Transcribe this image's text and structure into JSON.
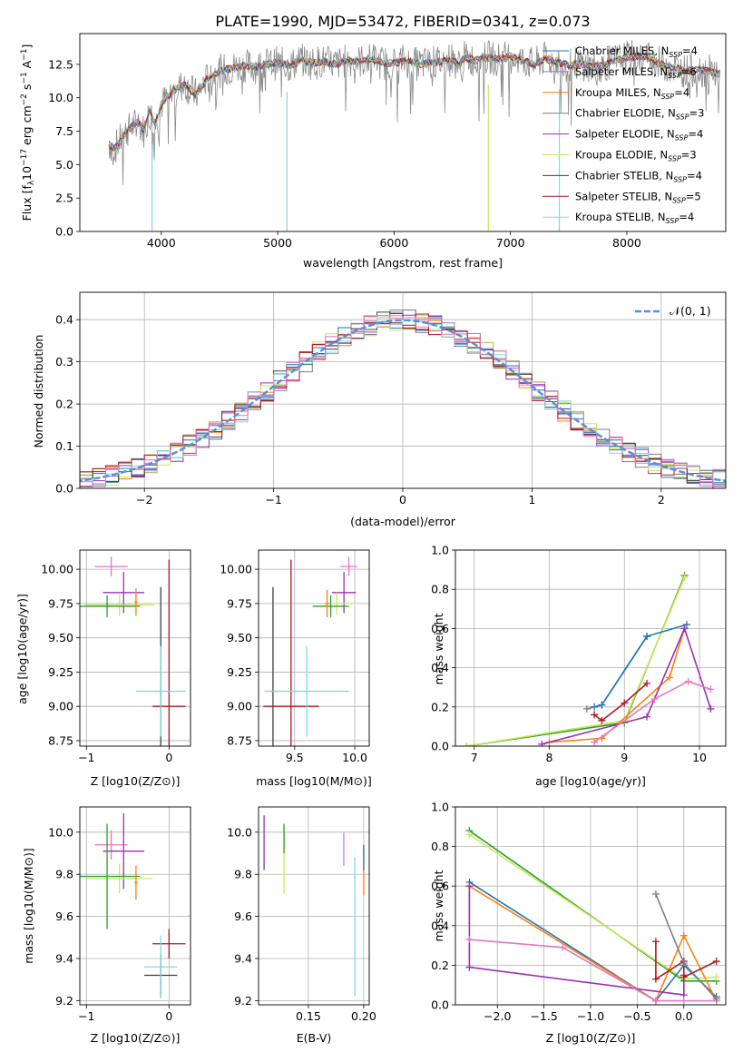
{
  "figure_title": "PLATE=1990, MJD=53472, FIBERID=0341, z=0.073",
  "colors": {
    "chabrier_miles": "#1f77b4",
    "salpeter_miles": "#8c7bd1",
    "kroupa_miles": "#ff7f0e",
    "chabrier_elodie": "#7f7f7f",
    "salpeter_elodie": "#9b30b0",
    "kroupa_elodie": "#c8e85a",
    "chabrier_stelib": "#404040",
    "salpeter_stelib": "#b0161e",
    "kroupa_stelib": "#7fd8e0",
    "pink": "#e377c2",
    "green": "#2ca02c",
    "normal_curve": "#5b8fd6"
  },
  "legend_spectrum": [
    {
      "model": "Chabrier MILES",
      "nssp": "=4"
    },
    {
      "model": "Salpeter MILES",
      "nssp": "=6"
    },
    {
      "model": "Kroupa MILES",
      "nssp": "=4"
    },
    {
      "model": "Chabrier ELODIE",
      "nssp": "=3"
    },
    {
      "model": "Salpeter ELODIE",
      "nssp": "=4"
    },
    {
      "model": "Kroupa ELODIE",
      "nssp": "=3"
    },
    {
      "model": "Chabrier STELIB",
      "nssp": "=4"
    },
    {
      "model": "Salpeter STELIB",
      "nssp": "=5"
    },
    {
      "model": "Kroupa STELIB",
      "nssp": "=4"
    }
  ],
  "chart_data": [
    {
      "id": "spectrum",
      "type": "line",
      "xlabel": "wavelength [Angstrom, rest frame]",
      "ylabel": "Flux [f_λ 10^-17 erg cm^-2 s^-1 A^-1]",
      "ylabel_parts": {
        "a": "Flux [f",
        "b": "λ",
        "c": "10",
        "d": "−17",
        "e": " erg cm",
        "f": "−2",
        "g": " s",
        "h": "−1",
        "i": " A",
        "j": "−1",
        "k": "]"
      },
      "xlim": [
        3300,
        8850
      ],
      "ylim": [
        0,
        14.8
      ],
      "xticks": [
        4000,
        5000,
        6000,
        7000,
        8000
      ],
      "yticks": [
        0.0,
        2.5,
        5.0,
        7.5,
        10.0,
        12.5
      ],
      "series_shape": {
        "x": [
          3550,
          3600,
          3700,
          3800,
          3850,
          3900,
          3950,
          4000,
          4100,
          4200,
          4300,
          4400,
          4500,
          4600,
          4700,
          4800,
          4900,
          5000,
          5100,
          5200,
          5300,
          5400,
          5500,
          5600,
          5700,
          5800,
          5900,
          6000,
          6100,
          6200,
          6300,
          6400,
          6500,
          6560,
          6600,
          6700,
          6800,
          6900,
          7000,
          7100,
          7200,
          7300,
          7400,
          7500,
          7600,
          7700,
          7800,
          7900,
          8000,
          8100,
          8200,
          8300,
          8400,
          8500,
          8600,
          8700,
          8800
        ],
        "y": [
          6.5,
          6.2,
          7.5,
          8.2,
          7.5,
          9.0,
          8.0,
          9.5,
          10.5,
          11.0,
          10.2,
          11.5,
          12.0,
          12.2,
          12.4,
          12.3,
          12.5,
          12.6,
          12.4,
          12.8,
          12.6,
          12.7,
          12.5,
          12.8,
          12.7,
          12.9,
          12.6,
          12.6,
          12.8,
          12.5,
          12.6,
          12.7,
          12.9,
          12.4,
          13.0,
          12.8,
          13.0,
          12.9,
          13.1,
          12.8,
          12.5,
          12.9,
          12.7,
          12.4,
          12.6,
          12.3,
          12.4,
          12.8,
          13.0,
          13.1,
          13.0,
          12.5,
          12.3,
          12.0,
          12.1,
          12.0,
          11.8
        ]
      },
      "dips": [
        {
          "x": 3920,
          "y": 0
        },
        {
          "x": 5080,
          "y": 0
        },
        {
          "x": 6810,
          "y": 0
        },
        {
          "x": 7420,
          "y": 0
        }
      ]
    },
    {
      "id": "residuals",
      "type": "line",
      "xlabel": "(data-model)/error",
      "ylabel": "Normed distribution",
      "xlim": [
        -2.5,
        2.5
      ],
      "ylim": [
        0,
        0.465
      ],
      "xticks": [
        -2,
        -1,
        0,
        1,
        2
      ],
      "yticks": [
        0.0,
        0.1,
        0.2,
        0.3,
        0.4
      ],
      "legend": "𝒩(0, 1)",
      "bin_width": 0.1,
      "curve": "normal pdf, mean 0, sigma 1"
    },
    {
      "id": "age_vs_Z",
      "type": "scatter",
      "xlabel": "Z [log10(Z/Z⊙)]",
      "ylabel": "age [log10(age/yr)]",
      "xlim": [
        -1.08,
        0.26
      ],
      "ylim": [
        8.71,
        10.14
      ],
      "xticks": [
        -1,
        0
      ],
      "yticks": [
        8.75,
        9.0,
        9.25,
        9.5,
        9.75,
        10.0
      ],
      "points": [
        {
          "x": -0.7,
          "y": 10.02,
          "xerr": 0.2,
          "yerr": 0.07,
          "color": "pink"
        },
        {
          "x": -0.55,
          "y": 9.83,
          "xerr": 0.25,
          "yerr": 0.15,
          "color": "salpeter_elodie"
        },
        {
          "x": -0.6,
          "y": 9.74,
          "xerr": 0.42,
          "yerr": 0.08,
          "color": "kroupa_elodie"
        },
        {
          "x": -0.75,
          "y": 9.73,
          "xerr": 0.4,
          "yerr": 0.08,
          "color": "green"
        },
        {
          "x": -0.4,
          "y": 9.76,
          "xerr": 0.02,
          "yerr": 0.1,
          "color": "kroupa_miles"
        },
        {
          "x": -0.1,
          "y": 9.11,
          "xerr": 0.02,
          "yerr": 0.76,
          "color": "chabrier_stelib"
        },
        {
          "x": 0.0,
          "y": 9.0,
          "xerr": 0.2,
          "yerr": 1.07,
          "color": "salpeter_stelib"
        },
        {
          "x": -0.1,
          "y": 9.11,
          "xerr": 0.3,
          "yerr": 0.33,
          "color": "kroupa_stelib"
        }
      ]
    },
    {
      "id": "age_vs_mass",
      "type": "scatter",
      "xlabel": "mass [log10(M/M⊙)]",
      "ylabel": "",
      "xlim": [
        9.2,
        10.12
      ],
      "ylim": [
        8.71,
        10.14
      ],
      "xticks": [
        9.5,
        10.0
      ],
      "yticks": [
        8.75,
        9.0,
        9.25,
        9.5,
        9.75,
        10.0
      ],
      "points": [
        {
          "x": 9.95,
          "y": 10.02,
          "xerr": 0.07,
          "yerr": 0.07,
          "color": "pink"
        },
        {
          "x": 9.91,
          "y": 9.83,
          "xerr": 0.1,
          "yerr": 0.15,
          "color": "salpeter_elodie"
        },
        {
          "x": 9.85,
          "y": 9.75,
          "xerr": 0.13,
          "yerr": 0.08,
          "color": "kroupa_elodie"
        },
        {
          "x": 9.8,
          "y": 9.73,
          "xerr": 0.15,
          "yerr": 0.08,
          "color": "green"
        },
        {
          "x": 9.77,
          "y": 9.75,
          "xerr": 0.02,
          "yerr": 0.1,
          "color": "kroupa_miles"
        },
        {
          "x": 9.32,
          "y": 9.11,
          "xerr": 0.02,
          "yerr": 0.76,
          "color": "chabrier_stelib"
        },
        {
          "x": 9.47,
          "y": 9.0,
          "xerr": 0.23,
          "yerr": 1.07,
          "color": "salpeter_stelib"
        },
        {
          "x": 9.6,
          "y": 9.11,
          "xerr": 0.35,
          "yerr": 0.33,
          "color": "kroupa_stelib"
        }
      ]
    },
    {
      "id": "massweight_vs_age",
      "type": "line",
      "xlabel": "age [log10(age/yr)]",
      "ylabel": "mass weight",
      "xlim": [
        6.75,
        10.35
      ],
      "ylim": [
        0,
        1
      ],
      "xticks": [
        7,
        8,
        9,
        10
      ],
      "yticks": [
        0.0,
        0.2,
        0.4,
        0.6,
        0.8,
        1.0
      ],
      "series": [
        {
          "color": "green",
          "points": [
            [
              6.9,
              0.0
            ],
            [
              9.0,
              0.12
            ],
            [
              9.8,
              0.87
            ]
          ]
        },
        {
          "color": "kroupa_elodie",
          "points": [
            [
              6.9,
              0.0
            ],
            [
              9.0,
              0.13
            ],
            [
              9.8,
              0.86
            ]
          ]
        },
        {
          "color": "chabrier_elodie",
          "points": [
            [
              8.5,
              0.19
            ],
            [
              8.7,
              0.21
            ],
            [
              9.3,
              0.56
            ]
          ]
        },
        {
          "color": "chabrier_miles",
          "points": [
            [
              8.6,
              0.2
            ],
            [
              8.7,
              0.21
            ],
            [
              9.3,
              0.56
            ],
            [
              9.83,
              0.62
            ]
          ]
        },
        {
          "color": "kroupa_miles",
          "points": [
            [
              8.0,
              0.02
            ],
            [
              8.7,
              0.04
            ],
            [
              9.6,
              0.35
            ],
            [
              9.8,
              0.6
            ]
          ]
        },
        {
          "color": "salpeter_stelib",
          "points": [
            [
              8.6,
              0.16
            ],
            [
              8.7,
              0.13
            ],
            [
              9.0,
              0.22
            ],
            [
              9.3,
              0.32
            ]
          ]
        },
        {
          "color": "salpeter_elodie",
          "points": [
            [
              7.9,
              0.01
            ],
            [
              9.3,
              0.15
            ],
            [
              9.8,
              0.6
            ],
            [
              10.15,
              0.19
            ]
          ]
        },
        {
          "color": "pink",
          "points": [
            [
              8.6,
              0.02
            ],
            [
              9.4,
              0.24
            ],
            [
              9.85,
              0.33
            ],
            [
              10.15,
              0.29
            ]
          ]
        }
      ]
    },
    {
      "id": "mass_vs_Z",
      "type": "scatter",
      "xlabel": "Z [log10(Z/Z⊙)]",
      "ylabel": "mass [log10(M/M⊙)]",
      "xlim": [
        -1.08,
        0.26
      ],
      "ylim": [
        9.18,
        10.12
      ],
      "xticks": [
        -1,
        0
      ],
      "yticks": [
        9.2,
        9.4,
        9.6,
        9.8,
        10.0
      ],
      "points": [
        {
          "x": -0.7,
          "y": 9.94,
          "xerr": 0.2,
          "yerr": 0.07,
          "color": "pink"
        },
        {
          "x": -0.55,
          "y": 9.91,
          "xerr": 0.25,
          "yerr": 0.18,
          "color": "salpeter_elodie"
        },
        {
          "x": -0.6,
          "y": 9.78,
          "xerr": 0.4,
          "yerr": 0.07,
          "color": "kroupa_elodie"
        },
        {
          "x": -0.75,
          "y": 9.79,
          "xerr": 0.4,
          "yerr": 0.25,
          "color": "green"
        },
        {
          "x": -0.4,
          "y": 9.76,
          "xerr": 0.02,
          "yerr": 0.08,
          "color": "kroupa_miles"
        },
        {
          "x": -0.1,
          "y": 9.32,
          "xerr": 0.2,
          "yerr": 0.1,
          "color": "chabrier_stelib"
        },
        {
          "x": 0.0,
          "y": 9.47,
          "xerr": 0.2,
          "yerr": 0.07,
          "color": "salpeter_stelib"
        },
        {
          "x": -0.1,
          "y": 9.36,
          "xerr": 0.2,
          "yerr": 0.15,
          "color": "kroupa_stelib"
        }
      ]
    },
    {
      "id": "mass_vs_ebv",
      "type": "scatter",
      "xlabel": "E(B-V)",
      "ylabel": "",
      "xlim": [
        0.105,
        0.205
      ],
      "ylim": [
        9.18,
        10.12
      ],
      "xticks": [
        0.15,
        0.2
      ],
      "yticks": [
        9.2,
        9.4,
        9.6,
        9.8,
        10.0
      ],
      "points": [
        {
          "x": 0.11,
          "y": 9.95,
          "xerr": 0.0,
          "yerr": 0.13,
          "color": "salpeter_elodie"
        },
        {
          "x": 0.128,
          "y": 9.87,
          "xerr": 0.0,
          "yerr": 0.16,
          "color": "kroupa_elodie"
        },
        {
          "x": 0.128,
          "y": 9.97,
          "xerr": 0.0,
          "yerr": 0.07,
          "color": "green"
        },
        {
          "x": 0.182,
          "y": 9.92,
          "xerr": 0.0,
          "yerr": 0.08,
          "color": "pink"
        },
        {
          "x": 0.192,
          "y": 9.55,
          "xerr": 0.0,
          "yerr": 0.33,
          "color": "kroupa_stelib"
        },
        {
          "x": 0.2,
          "y": 9.82,
          "xerr": 0.0,
          "yerr": 0.12,
          "color": "kroupa_miles"
        },
        {
          "x": 0.2,
          "y": 9.88,
          "xerr": 0.0,
          "yerr": 0.06,
          "color": "chabrier_miles"
        }
      ]
    },
    {
      "id": "massweight_vs_Z",
      "type": "line",
      "xlabel": "Z [log10(Z/Z⊙)]",
      "ylabel": "mass weight",
      "xlim": [
        -2.45,
        0.45
      ],
      "ylim": [
        0,
        1
      ],
      "xticks": [
        -2.0,
        -1.5,
        -1.0,
        -0.5,
        0.0
      ],
      "yticks": [
        0.0,
        0.2,
        0.4,
        0.6,
        0.8,
        1.0
      ],
      "series": [
        {
          "color": "green",
          "points": [
            [
              -2.3,
              0.88
            ],
            [
              0.0,
              0.12
            ],
            [
              0.35,
              0.12
            ]
          ]
        },
        {
          "color": "kroupa_elodie",
          "points": [
            [
              -2.3,
              0.86
            ],
            [
              0.0,
              0.13
            ],
            [
              0.35,
              0.14
            ]
          ]
        },
        {
          "color": "chabrier_miles",
          "points": [
            [
              -2.3,
              0.62
            ],
            [
              -0.3,
              0.02
            ],
            [
              0.0,
              0.2
            ],
            [
              0.35,
              0.04
            ]
          ]
        },
        {
          "color": "kroupa_miles",
          "points": [
            [
              -2.3,
              0.6
            ],
            [
              -0.3,
              0.02
            ],
            [
              0.0,
              0.35
            ],
            [
              0.35,
              0.02
            ]
          ]
        },
        {
          "color": "salpeter_elodie",
          "points": [
            [
              -2.3,
              0.6
            ],
            [
              -2.3,
              0.19
            ],
            [
              0.0,
              0.05
            ],
            [
              0.0,
              0.15
            ]
          ]
        },
        {
          "color": "pink",
          "points": [
            [
              -2.3,
              0.33
            ],
            [
              -1.3,
              0.29
            ],
            [
              -0.3,
              0.02
            ],
            [
              0.0,
              0.02
            ],
            [
              0.35,
              0.02
            ]
          ]
        },
        {
          "color": "salpeter_stelib",
          "points": [
            [
              -0.3,
              0.32
            ],
            [
              -0.3,
              0.13
            ],
            [
              0.0,
              0.22
            ],
            [
              0.0,
              0.14
            ],
            [
              0.35,
              0.22
            ]
          ]
        },
        {
          "color": "chabrier_elodie",
          "points": [
            [
              -0.3,
              0.56
            ],
            [
              0.0,
              0.21
            ],
            [
              0.35,
              0.03
            ]
          ]
        }
      ]
    }
  ]
}
